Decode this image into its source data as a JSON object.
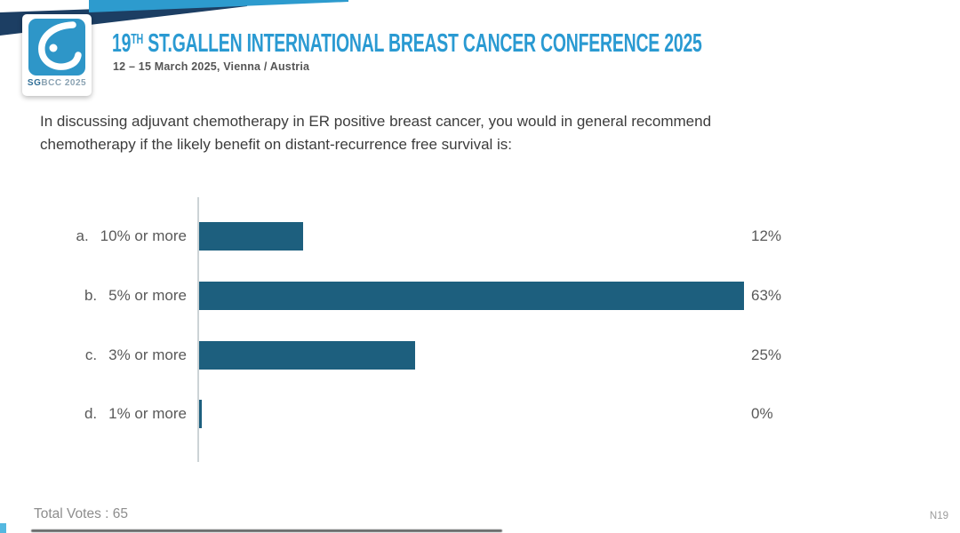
{
  "header": {
    "logo": {
      "caption_bold": "SG",
      "caption_rest": "BCC 2025"
    },
    "title_number": "19",
    "title_sup": "TH",
    "title_rest": " ST.GALLEN INTERNATIONAL BREAST CANCER CONFERENCE 2025",
    "subtitle": "12 – 15 March 2025, Vienna / Austria"
  },
  "question": {
    "line1": "In discussing adjuvant chemotherapy in ER positive breast cancer, you would in general recommend",
    "line2": "chemotherapy if the likely benefit on distant-recurrence free survival is:"
  },
  "chart_data": {
    "type": "bar",
    "orientation": "horizontal",
    "title": "",
    "categories": [
      "a.  10% or more",
      "b.  5% or more",
      "c.  3% or more",
      "d.  1% or more"
    ],
    "values": [
      12,
      63,
      25,
      0
    ],
    "value_labels": [
      "12%",
      "63%",
      "25%",
      "0%"
    ],
    "rows": [
      {
        "key": "a.",
        "label": "10% or more",
        "value": 12,
        "value_label": "12%"
      },
      {
        "key": "b.",
        "label": "5% or more",
        "value": 63,
        "value_label": "63%"
      },
      {
        "key": "c.",
        "label": "3% or more",
        "value": 25,
        "value_label": "25%"
      },
      {
        "key": "d.",
        "label": "1% or more",
        "value": 0,
        "value_label": "0%"
      }
    ],
    "xlim": [
      0,
      65
    ],
    "grid": false,
    "legend": false,
    "bar_color": "#1d5f7e",
    "axis_color": "#ccd3d6"
  },
  "footer": {
    "total_votes": "Total Votes : 65",
    "slide_ref": "N19"
  },
  "colors": {
    "brand_blue": "#2d9bce",
    "brand_navy": "#1c3e63",
    "title_blue": "#2a9ad2",
    "bar_teal": "#1d5f7e",
    "label_gray": "#595959",
    "footer_gray": "#8d8d8d"
  }
}
